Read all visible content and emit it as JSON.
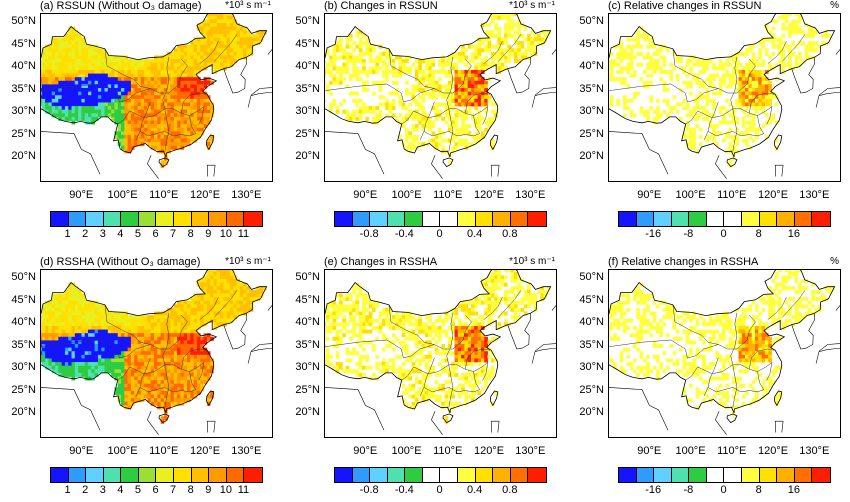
{
  "panels": [
    {
      "title": "(a) RSSUN (Without O₃ damage)",
      "unit": "*10³ s m⁻¹",
      "kind": "abs",
      "seed": 1
    },
    {
      "title": "(b) Changes in RSSUN",
      "unit": "*10³ s m⁻¹",
      "kind": "chg",
      "seed": 2
    },
    {
      "title": "(c) Relative changes in RSSUN",
      "unit": "%",
      "kind": "rel",
      "seed": 3
    },
    {
      "title": "(d) RSSHA (Without O₃ damage)",
      "unit": "*10³ s m⁻¹",
      "kind": "abs",
      "seed": 4
    },
    {
      "title": "(e) Changes in RSSHA",
      "unit": "*10³ s m⁻¹",
      "kind": "chg",
      "seed": 5
    },
    {
      "title": "(f) Relative changes in RSSHA",
      "unit": "%",
      "kind": "rel",
      "seed": 6
    }
  ],
  "lat_labels": [
    "50°N",
    "45°N",
    "40°N",
    "35°N",
    "30°N",
    "25°N",
    "20°N"
  ],
  "lon_labels": [
    "90°E",
    "100°E",
    "110°E",
    "120°E",
    "130°E"
  ],
  "colorbars": {
    "abs": {
      "colors": [
        "#1414ff",
        "#2e9bff",
        "#5fd0ff",
        "#4fe0b0",
        "#2ecc40",
        "#99e033",
        "#e8f020",
        "#ffe000",
        "#ffc000",
        "#ff9a00",
        "#ff6a00",
        "#ff1e00"
      ],
      "labels": [
        "1",
        "2",
        "3",
        "4",
        "5",
        "6",
        "7",
        "8",
        "9",
        "10",
        "11"
      ]
    },
    "chg": {
      "colors": [
        "#1414ff",
        "#2e9bff",
        "#5fd0ff",
        "#4fe0b0",
        "#2ecc40",
        "#ffffff",
        "#ffffff",
        "#ffff40",
        "#ffe000",
        "#ffb000",
        "#ff7000",
        "#ff1e00"
      ],
      "labels": [
        "-0.8",
        "-0.4",
        "0",
        "0.4",
        "0.8"
      ]
    },
    "rel": {
      "colors": [
        "#1414ff",
        "#2e9bff",
        "#5fd0ff",
        "#4fe0b0",
        "#2ecc40",
        "#ffffff",
        "#ffffff",
        "#ffff40",
        "#ffe000",
        "#ffb000",
        "#ff7000",
        "#ff1e00"
      ],
      "labels": [
        "-16",
        "-8",
        "0",
        "8",
        "16"
      ]
    }
  }
}
